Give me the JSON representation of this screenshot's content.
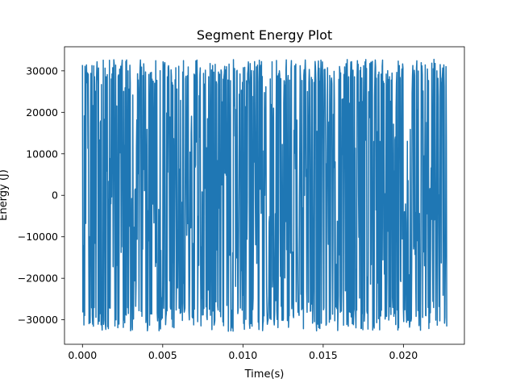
{
  "chart_data": {
    "type": "line",
    "title": "Segment Energy Plot",
    "xlabel": "Time(s)",
    "ylabel": "Energy (J)",
    "xlim": [
      -0.00112,
      0.0238
    ],
    "ylim": [
      -35900,
      35800
    ],
    "x_ticks": [
      0.0,
      0.005,
      0.01,
      0.015,
      0.02
    ],
    "x_tick_labels": [
      "0.000",
      "0.005",
      "0.010",
      "0.015",
      "0.020"
    ],
    "y_ticks": [
      -30000,
      -20000,
      -10000,
      0,
      10000,
      20000,
      30000
    ],
    "y_tick_labels": [
      "−30000",
      "−20000",
      "−10000",
      "0",
      "10000",
      "20000",
      "30000"
    ],
    "grid": false,
    "legend": false,
    "series": [
      {
        "color": "#1f77b4",
        "x_start": 0.0,
        "x_end": 0.0227,
        "y_range": [
          -32768,
          32767
        ],
        "pattern": "dense high-frequency oscillation spanning nearly the full range",
        "sample_count": 1000
      }
    ]
  }
}
